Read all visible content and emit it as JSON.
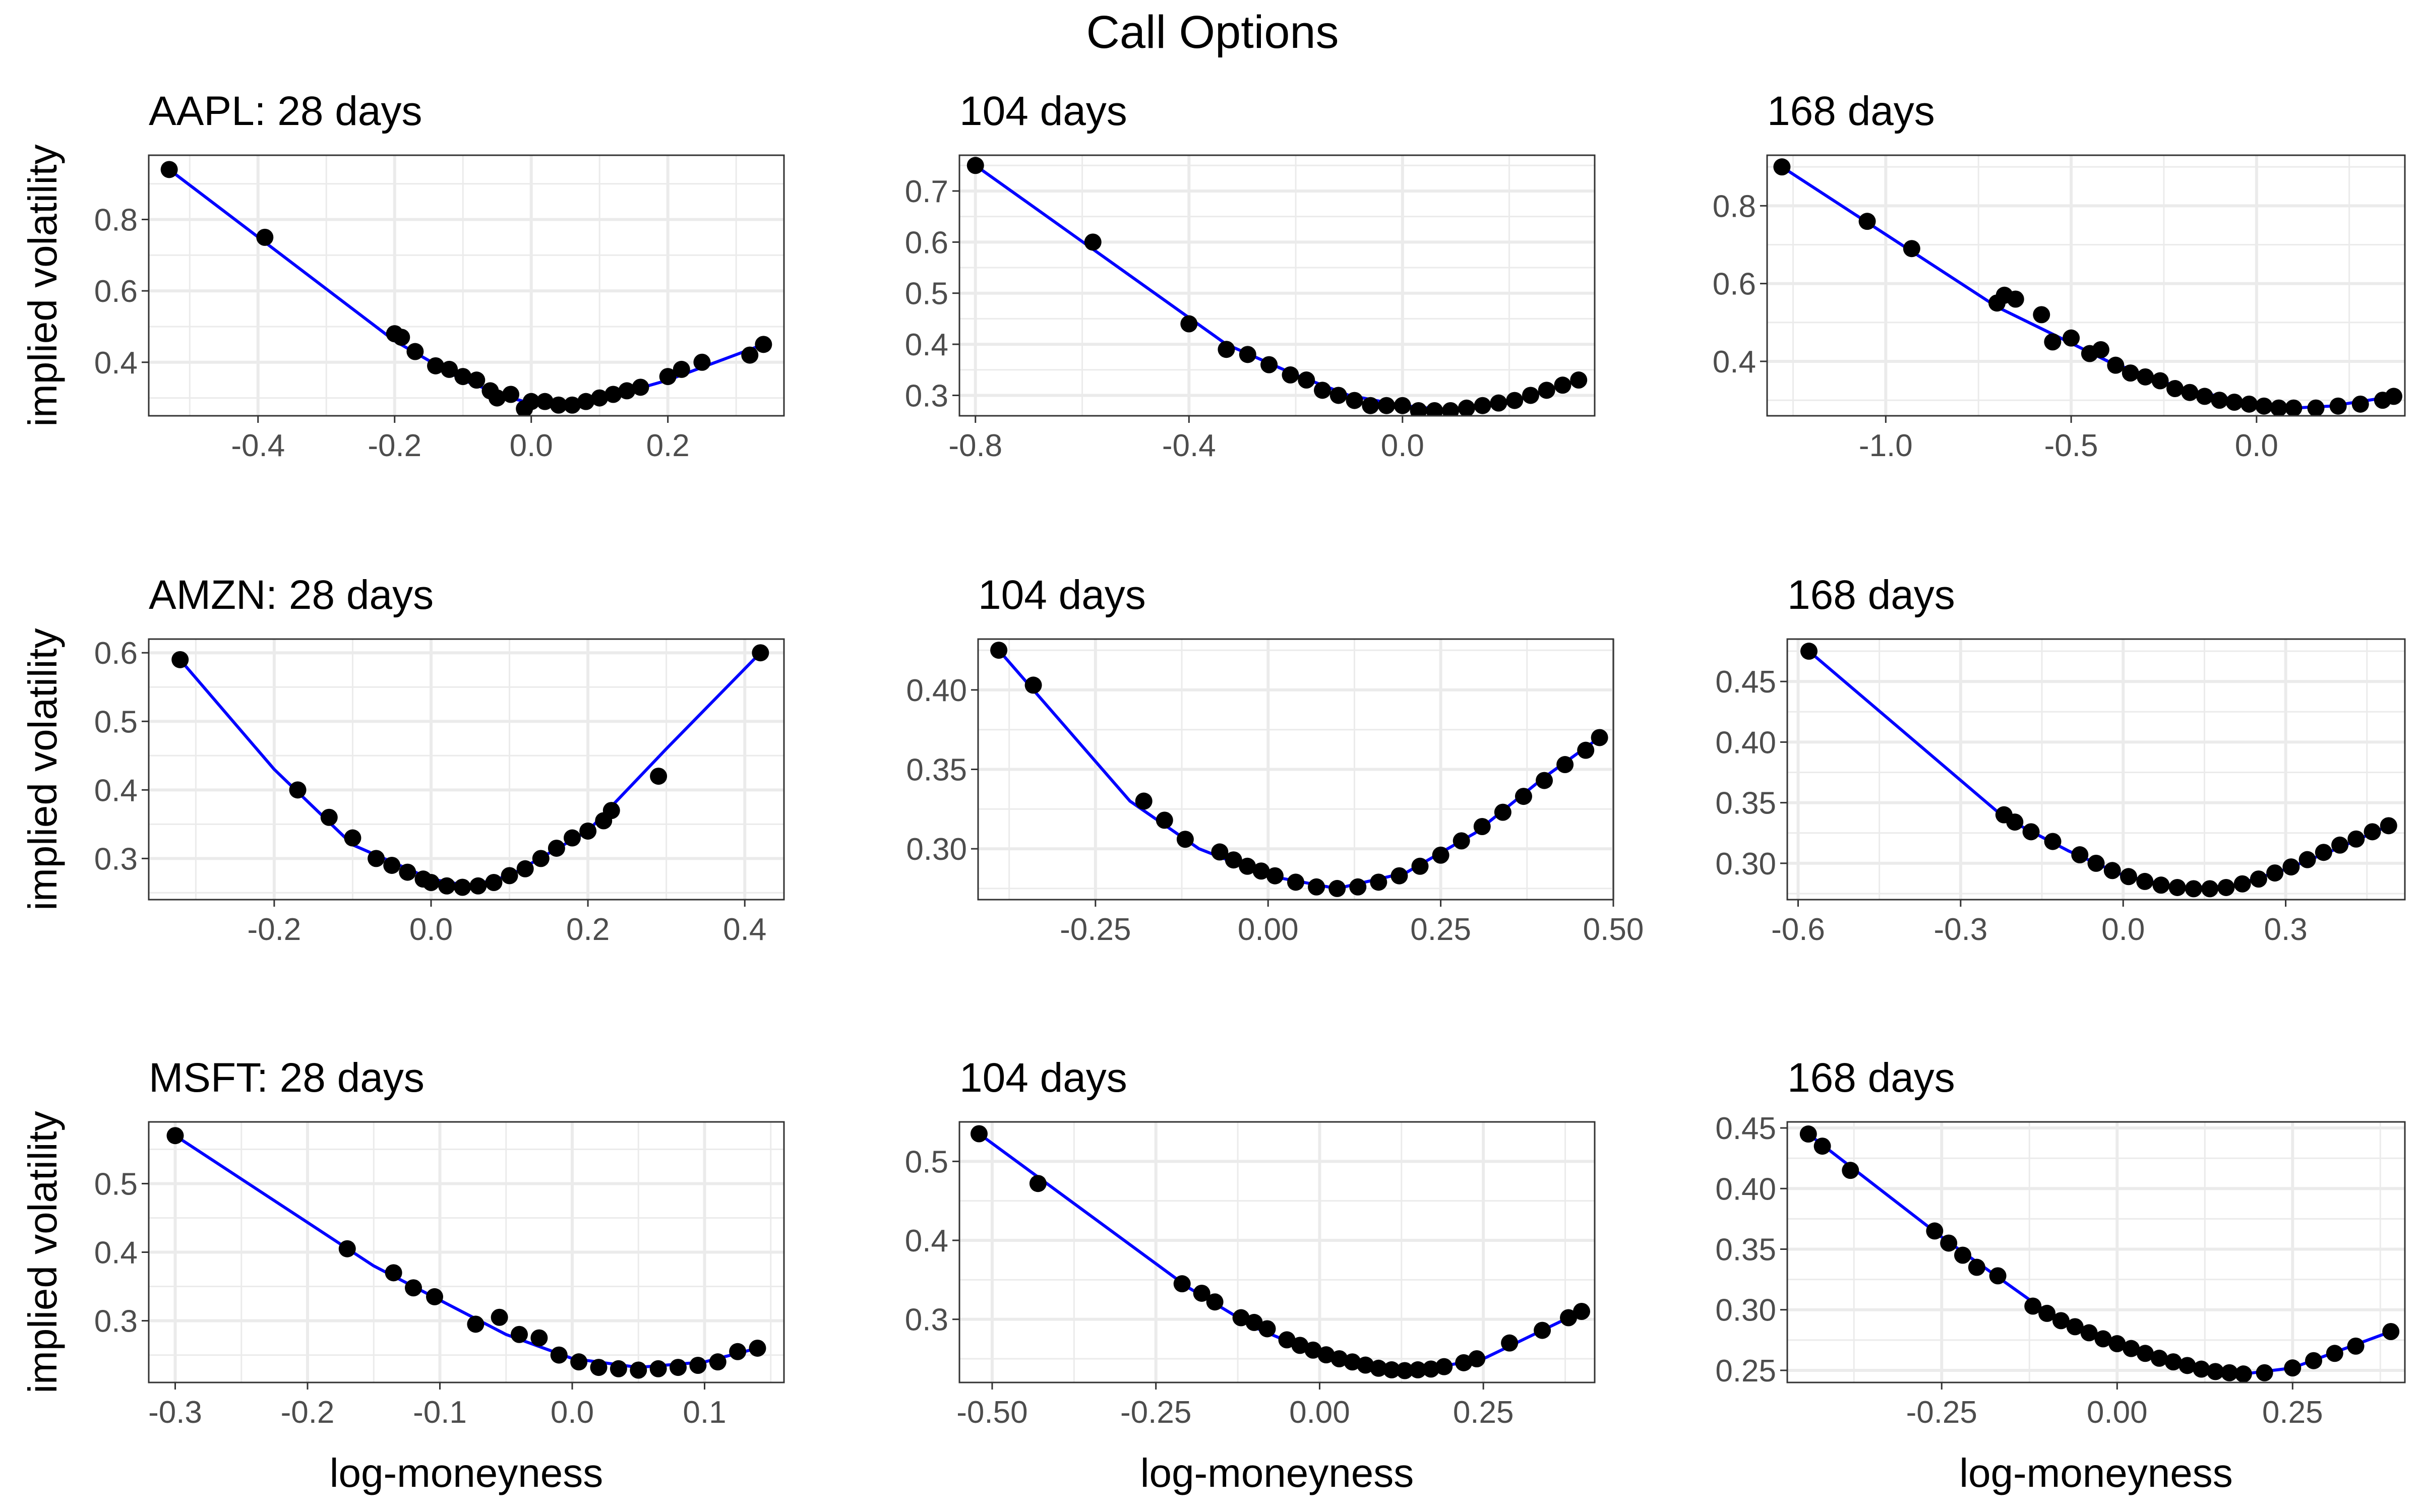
{
  "figure": {
    "title": "Call Options",
    "xlabel": "log-moneyness",
    "ylabel": "implied volatility"
  },
  "colors": {
    "points": "#000000",
    "fit_line": "#0000ff",
    "grid": "#ebebeb",
    "panel_border": "#333333",
    "background": "#ffffff"
  },
  "chart_data": [
    {
      "type": "scatter",
      "title": "AAPL: 28 days",
      "xlabel": "",
      "ylabel": "implied volatility",
      "xlim": [
        -0.56,
        0.37
      ],
      "ylim": [
        0.25,
        0.98
      ],
      "xticks": [
        -0.4,
        -0.2,
        0.0,
        0.2
      ],
      "xticklabels": [
        "-0.4",
        "-0.2",
        "0.0",
        "0.2"
      ],
      "yticks": [
        0.4,
        0.6,
        0.8
      ],
      "yticklabels": [
        "0.4",
        "0.6",
        "0.8"
      ],
      "series": [
        {
          "kind": "points",
          "x": [
            -0.53,
            -0.39,
            -0.2,
            -0.19,
            -0.17,
            -0.14,
            -0.12,
            -0.1,
            -0.08,
            -0.06,
            -0.05,
            -0.03,
            -0.01,
            0.0,
            0.02,
            0.04,
            0.06,
            0.08,
            0.1,
            0.12,
            0.14,
            0.16,
            0.2,
            0.22,
            0.25,
            0.32,
            0.34
          ],
          "y": [
            0.94,
            0.75,
            0.48,
            0.47,
            0.43,
            0.39,
            0.38,
            0.36,
            0.35,
            0.32,
            0.3,
            0.31,
            0.27,
            0.29,
            0.29,
            0.28,
            0.28,
            0.29,
            0.3,
            0.31,
            0.32,
            0.33,
            0.36,
            0.38,
            0.4,
            0.42,
            0.45
          ]
        },
        {
          "kind": "line",
          "x": [
            -0.53,
            -0.2,
            -0.1,
            -0.03,
            0.0,
            0.05,
            0.1,
            0.2,
            0.34
          ],
          "y": [
            0.94,
            0.46,
            0.35,
            0.3,
            0.285,
            0.28,
            0.295,
            0.35,
            0.45
          ]
        }
      ]
    },
    {
      "type": "scatter",
      "title": "104 days",
      "xlabel": "",
      "ylabel": "",
      "xlim": [
        -0.83,
        0.36
      ],
      "ylim": [
        0.26,
        0.77
      ],
      "xticks": [
        -0.8,
        -0.4,
        0.0
      ],
      "xticklabels": [
        "-0.8",
        "-0.4",
        "0.0"
      ],
      "yticks": [
        0.3,
        0.4,
        0.5,
        0.6,
        0.7
      ],
      "yticklabels": [
        "0.3",
        "0.4",
        "0.5",
        "0.6",
        "0.7"
      ],
      "series": [
        {
          "kind": "points",
          "x": [
            -0.8,
            -0.58,
            -0.4,
            -0.33,
            -0.29,
            -0.25,
            -0.21,
            -0.18,
            -0.15,
            -0.12,
            -0.09,
            -0.06,
            -0.03,
            0.0,
            0.03,
            0.06,
            0.09,
            0.12,
            0.15,
            0.18,
            0.21,
            0.24,
            0.27,
            0.3,
            0.33
          ],
          "y": [
            0.75,
            0.6,
            0.44,
            0.39,
            0.38,
            0.36,
            0.34,
            0.33,
            0.31,
            0.3,
            0.29,
            0.28,
            0.28,
            0.28,
            0.27,
            0.27,
            0.27,
            0.275,
            0.28,
            0.285,
            0.29,
            0.3,
            0.31,
            0.32,
            0.33
          ]
        },
        {
          "kind": "line",
          "x": [
            -0.8,
            -0.33,
            -0.2,
            -0.1,
            0.0,
            0.1,
            0.2,
            0.33
          ],
          "y": [
            0.75,
            0.4,
            0.34,
            0.3,
            0.28,
            0.27,
            0.285,
            0.33
          ]
        }
      ]
    },
    {
      "type": "scatter",
      "title": "168 days",
      "xlabel": "",
      "ylabel": "",
      "xlim": [
        -1.32,
        0.4
      ],
      "ylim": [
        0.26,
        0.93
      ],
      "xticks": [
        -1.0,
        -0.5,
        0.0
      ],
      "xticklabels": [
        "-1.0",
        "-0.5",
        "0.0"
      ],
      "yticks": [
        0.4,
        0.6,
        0.8
      ],
      "yticklabels": [
        "0.4",
        "0.6",
        "0.8"
      ],
      "series": [
        {
          "kind": "points",
          "x": [
            -1.28,
            -1.05,
            -0.93,
            -0.7,
            -0.68,
            -0.65,
            -0.58,
            -0.55,
            -0.5,
            -0.45,
            -0.42,
            -0.38,
            -0.34,
            -0.3,
            -0.26,
            -0.22,
            -0.18,
            -0.14,
            -0.1,
            -0.06,
            -0.02,
            0.02,
            0.06,
            0.1,
            0.16,
            0.22,
            0.28,
            0.34,
            0.37
          ],
          "y": [
            0.9,
            0.76,
            0.69,
            0.55,
            0.57,
            0.56,
            0.52,
            0.45,
            0.46,
            0.42,
            0.43,
            0.39,
            0.37,
            0.36,
            0.35,
            0.33,
            0.32,
            0.31,
            0.3,
            0.295,
            0.29,
            0.285,
            0.28,
            0.28,
            0.28,
            0.285,
            0.29,
            0.3,
            0.31
          ]
        },
        {
          "kind": "line",
          "x": [
            -1.28,
            -0.7,
            -0.4,
            -0.2,
            0.0,
            0.1,
            0.2,
            0.37
          ],
          "y": [
            0.9,
            0.54,
            0.4,
            0.33,
            0.29,
            0.28,
            0.285,
            0.31
          ]
        }
      ]
    },
    {
      "type": "scatter",
      "title": "AMZN: 28 days",
      "xlabel": "",
      "ylabel": "implied volatility",
      "xlim": [
        -0.36,
        0.45
      ],
      "ylim": [
        0.24,
        0.62
      ],
      "xticks": [
        -0.2,
        0.0,
        0.2,
        0.4
      ],
      "xticklabels": [
        "-0.2",
        "0.0",
        "0.2",
        "0.4"
      ],
      "yticks": [
        0.3,
        0.4,
        0.5,
        0.6
      ],
      "yticklabels": [
        "0.3",
        "0.4",
        "0.5",
        "0.6"
      ],
      "series": [
        {
          "kind": "points",
          "x": [
            -0.32,
            -0.17,
            -0.13,
            -0.1,
            -0.07,
            -0.05,
            -0.03,
            -0.01,
            0.0,
            0.02,
            0.04,
            0.06,
            0.08,
            0.1,
            0.12,
            0.14,
            0.16,
            0.18,
            0.2,
            0.22,
            0.23,
            0.29,
            0.42
          ],
          "y": [
            0.59,
            0.4,
            0.36,
            0.33,
            0.3,
            0.29,
            0.28,
            0.27,
            0.265,
            0.26,
            0.258,
            0.26,
            0.265,
            0.275,
            0.285,
            0.3,
            0.315,
            0.33,
            0.34,
            0.355,
            0.37,
            0.42,
            0.6
          ]
        },
        {
          "kind": "line",
          "x": [
            -0.32,
            -0.2,
            -0.1,
            0.0,
            0.05,
            0.1,
            0.2,
            0.3,
            0.42
          ],
          "y": [
            0.59,
            0.43,
            0.32,
            0.27,
            0.26,
            0.275,
            0.34,
            0.46,
            0.6
          ]
        }
      ]
    },
    {
      "type": "scatter",
      "title": "104 days",
      "xlabel": "",
      "ylabel": "",
      "xlim": [
        -0.42,
        0.5
      ],
      "ylim": [
        0.268,
        0.432
      ],
      "xticks": [
        -0.25,
        0.0,
        0.25,
        0.5
      ],
      "xticklabels": [
        "-0.25",
        "0.00",
        "0.25",
        "0.50"
      ],
      "yticks": [
        0.3,
        0.35,
        0.4
      ],
      "yticklabels": [
        "0.30",
        "0.35",
        "0.40"
      ],
      "series": [
        {
          "kind": "points",
          "x": [
            -0.39,
            -0.34,
            -0.18,
            -0.15,
            -0.12,
            -0.07,
            -0.05,
            -0.03,
            -0.01,
            0.01,
            0.04,
            0.07,
            0.1,
            0.13,
            0.16,
            0.19,
            0.22,
            0.25,
            0.28,
            0.31,
            0.34,
            0.37,
            0.4,
            0.43,
            0.46,
            0.48
          ],
          "y": [
            0.425,
            0.403,
            0.33,
            0.318,
            0.306,
            0.298,
            0.293,
            0.289,
            0.286,
            0.283,
            0.279,
            0.276,
            0.275,
            0.276,
            0.279,
            0.283,
            0.289,
            0.296,
            0.305,
            0.314,
            0.323,
            0.333,
            0.343,
            0.353,
            0.362,
            0.37
          ]
        },
        {
          "kind": "line",
          "x": [
            -0.39,
            -0.2,
            -0.1,
            0.0,
            0.1,
            0.2,
            0.3,
            0.4,
            0.48
          ],
          "y": [
            0.425,
            0.33,
            0.3,
            0.283,
            0.275,
            0.285,
            0.31,
            0.345,
            0.37
          ]
        }
      ]
    },
    {
      "type": "scatter",
      "title": "168 days",
      "xlabel": "",
      "ylabel": "",
      "xlim": [
        -0.62,
        0.52
      ],
      "ylim": [
        0.27,
        0.485
      ],
      "xticks": [
        -0.6,
        -0.3,
        0.0,
        0.3
      ],
      "xticklabels": [
        "-0.6",
        "-0.3",
        "0.0",
        "0.3"
      ],
      "yticks": [
        0.3,
        0.35,
        0.4,
        0.45
      ],
      "yticklabels": [
        "0.30",
        "0.35",
        "0.40",
        "0.45"
      ],
      "series": [
        {
          "kind": "points",
          "x": [
            -0.58,
            -0.22,
            -0.2,
            -0.17,
            -0.13,
            -0.08,
            -0.05,
            -0.02,
            0.01,
            0.04,
            0.07,
            0.1,
            0.13,
            0.16,
            0.19,
            0.22,
            0.25,
            0.28,
            0.31,
            0.34,
            0.37,
            0.4,
            0.43,
            0.46,
            0.49
          ],
          "y": [
            0.475,
            0.34,
            0.334,
            0.326,
            0.318,
            0.307,
            0.3,
            0.294,
            0.289,
            0.285,
            0.282,
            0.28,
            0.279,
            0.279,
            0.28,
            0.283,
            0.287,
            0.292,
            0.297,
            0.303,
            0.309,
            0.315,
            0.32,
            0.326,
            0.331
          ]
        },
        {
          "kind": "line",
          "x": [
            -0.58,
            -0.22,
            -0.1,
            0.0,
            0.1,
            0.2,
            0.3,
            0.4,
            0.49
          ],
          "y": [
            0.475,
            0.338,
            0.31,
            0.29,
            0.28,
            0.281,
            0.295,
            0.313,
            0.331
          ]
        }
      ]
    },
    {
      "type": "scatter",
      "title": "MSFT: 28 days",
      "xlabel": "log-moneyness",
      "ylabel": "implied volatility",
      "xlim": [
        -0.32,
        0.16
      ],
      "ylim": [
        0.21,
        0.59
      ],
      "xticks": [
        -0.3,
        -0.2,
        -0.1,
        0.0,
        0.1
      ],
      "xticklabels": [
        "-0.3",
        "-0.2",
        "-0.1",
        "0.0",
        "0.1"
      ],
      "yticks": [
        0.3,
        0.4,
        0.5
      ],
      "yticklabels": [
        "0.3",
        "0.4",
        "0.5"
      ],
      "series": [
        {
          "kind": "points",
          "x": [
            -0.3,
            -0.17,
            -0.135,
            -0.12,
            -0.104,
            -0.073,
            -0.055,
            -0.04,
            -0.025,
            -0.01,
            0.005,
            0.02,
            0.035,
            0.05,
            0.065,
            0.08,
            0.095,
            0.11,
            0.125,
            0.14
          ],
          "y": [
            0.57,
            0.405,
            0.37,
            0.348,
            0.335,
            0.295,
            0.305,
            0.28,
            0.275,
            0.25,
            0.24,
            0.232,
            0.23,
            0.228,
            0.23,
            0.232,
            0.235,
            0.24,
            0.255,
            0.26
          ]
        },
        {
          "kind": "line",
          "x": [
            -0.3,
            -0.15,
            -0.05,
            0.0,
            0.05,
            0.1,
            0.14
          ],
          "y": [
            0.57,
            0.38,
            0.28,
            0.245,
            0.232,
            0.24,
            0.26
          ]
        }
      ]
    },
    {
      "type": "scatter",
      "title": "104 days",
      "xlabel": "log-moneyness",
      "ylabel": "",
      "xlim": [
        -0.55,
        0.42
      ],
      "ylim": [
        0.22,
        0.55
      ],
      "xticks": [
        -0.5,
        -0.25,
        0.0,
        0.25
      ],
      "xticklabels": [
        "-0.50",
        "-0.25",
        "0.00",
        "0.25"
      ],
      "yticks": [
        0.3,
        0.4,
        0.5
      ],
      "yticklabels": [
        "0.3",
        "0.4",
        "0.5"
      ],
      "series": [
        {
          "kind": "points",
          "x": [
            -0.52,
            -0.43,
            -0.21,
            -0.18,
            -0.16,
            -0.12,
            -0.1,
            -0.08,
            -0.05,
            -0.03,
            -0.01,
            0.01,
            0.03,
            0.05,
            0.07,
            0.09,
            0.11,
            0.13,
            0.15,
            0.17,
            0.19,
            0.22,
            0.24,
            0.29,
            0.34,
            0.38,
            0.4
          ],
          "y": [
            0.535,
            0.472,
            0.345,
            0.333,
            0.322,
            0.302,
            0.296,
            0.288,
            0.274,
            0.267,
            0.261,
            0.255,
            0.25,
            0.246,
            0.242,
            0.238,
            0.236,
            0.235,
            0.236,
            0.237,
            0.24,
            0.245,
            0.25,
            0.27,
            0.286,
            0.302,
            0.31
          ]
        },
        {
          "kind": "line",
          "x": [
            -0.52,
            -0.2,
            -0.1,
            0.0,
            0.1,
            0.15,
            0.25,
            0.4
          ],
          "y": [
            0.535,
            0.34,
            0.29,
            0.255,
            0.237,
            0.235,
            0.25,
            0.31
          ]
        }
      ]
    },
    {
      "type": "scatter",
      "title": "168 days",
      "xlabel": "log-moneyness",
      "ylabel": "",
      "xlim": [
        -0.47,
        0.41
      ],
      "ylim": [
        0.24,
        0.455
      ],
      "xticks": [
        -0.25,
        0.0,
        0.25
      ],
      "xticklabels": [
        "-0.25",
        "0.00",
        "0.25"
      ],
      "yticks": [
        0.25,
        0.3,
        0.35,
        0.4,
        0.45
      ],
      "yticklabels": [
        "0.25",
        "0.30",
        "0.35",
        "0.40",
        "0.45"
      ],
      "series": [
        {
          "kind": "points",
          "x": [
            -0.44,
            -0.42,
            -0.38,
            -0.26,
            -0.24,
            -0.22,
            -0.2,
            -0.17,
            -0.12,
            -0.1,
            -0.08,
            -0.06,
            -0.04,
            -0.02,
            0.0,
            0.02,
            0.04,
            0.06,
            0.08,
            0.1,
            0.12,
            0.14,
            0.16,
            0.18,
            0.21,
            0.25,
            0.28,
            0.31,
            0.34,
            0.39
          ],
          "y": [
            0.445,
            0.435,
            0.415,
            0.365,
            0.355,
            0.345,
            0.335,
            0.328,
            0.303,
            0.297,
            0.291,
            0.286,
            0.281,
            0.276,
            0.272,
            0.268,
            0.264,
            0.26,
            0.257,
            0.254,
            0.251,
            0.249,
            0.248,
            0.247,
            0.248,
            0.252,
            0.258,
            0.264,
            0.27,
            0.282
          ]
        },
        {
          "kind": "line",
          "x": [
            -0.44,
            -0.25,
            -0.1,
            0.0,
            0.1,
            0.18,
            0.25,
            0.39
          ],
          "y": [
            0.445,
            0.36,
            0.298,
            0.272,
            0.255,
            0.247,
            0.252,
            0.282
          ]
        }
      ]
    }
  ]
}
